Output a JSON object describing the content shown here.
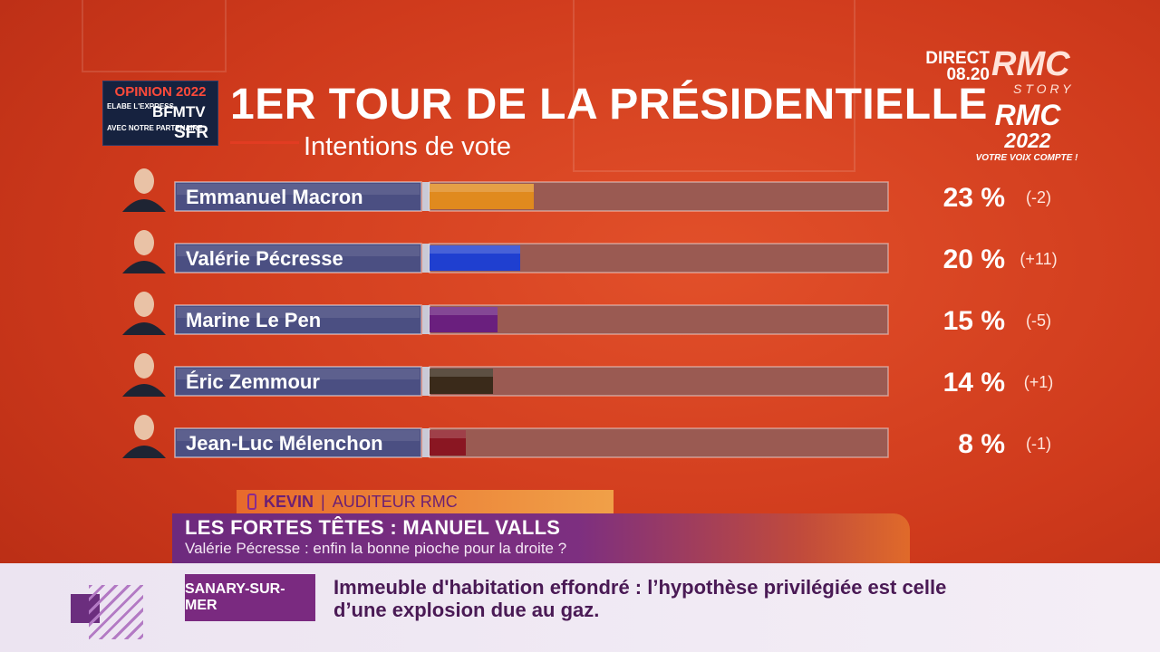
{
  "header": {
    "logo": {
      "opinion": "OPINION 2022",
      "elabe": "ELABE L'EXPRESS",
      "bfmtv": "BFMTV",
      "partner": "AVEC NOTRE PARTENAIRE",
      "sfr": "SFR"
    },
    "title": "1ER TOUR DE LA PRÉSIDENTIELLE",
    "subtitle": "Intentions de vote"
  },
  "branding": {
    "direct": "DIRECT",
    "time": "08.20",
    "rmc": "RMC",
    "story": "STORY",
    "rmc2022": "RMC",
    "year": "2022",
    "slogan": "VOTRE VOIX COMPTE !"
  },
  "chart_data": {
    "type": "bar",
    "orientation": "horizontal",
    "xlim": [
      0,
      100
    ],
    "categories": [
      "Emmanuel Macron",
      "Valérie Pécresse",
      "Marine Le Pen",
      "Éric Zemmour",
      "Jean-Luc Mélenchon"
    ],
    "values": [
      23,
      20,
      15,
      14,
      8
    ],
    "value_labels": [
      "23 %",
      "20 %",
      "15 %",
      "14 %",
      "8 %"
    ],
    "changes": [
      "(-2)",
      "(+11)",
      "(-5)",
      "(+1)",
      "(-1)"
    ],
    "colors": [
      "#e08a1e",
      "#1f3fd0",
      "#6a1f7e",
      "#3a2a1a",
      "#8a1622"
    ]
  },
  "lower": {
    "caller_name": "KEVIN",
    "caller_sep": "|",
    "caller_role": "AUDITEUR RMC",
    "show_title": "LES FORTES TÊTES : MANUEL VALLS",
    "show_subtitle": "Valérie Pécresse : enfin la bonne pioche pour la droite ?"
  },
  "ticker": {
    "location": "SANARY-SUR-MER",
    "headline": "Immeuble d'habitation effondré : l’hypothèse privilégiée est celle d’une explosion due au gaz."
  }
}
